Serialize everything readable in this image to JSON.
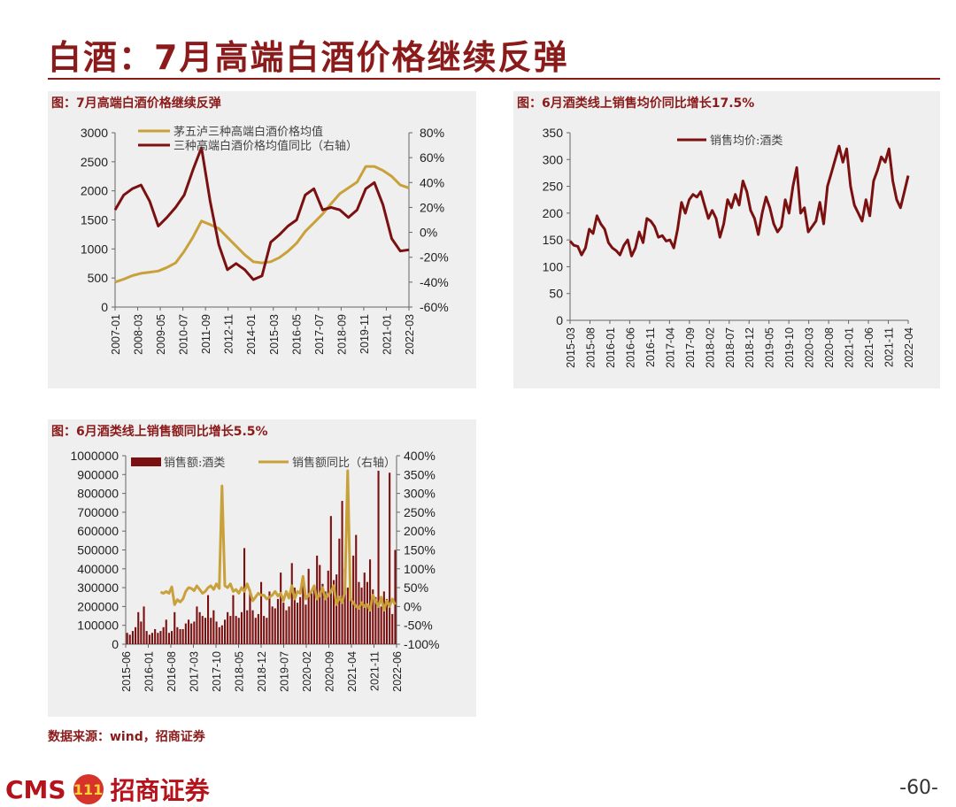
{
  "page": {
    "title": "白酒：7月高端白酒价格继续反弹",
    "source": "数据来源：wind，招商证券",
    "logo_latin": "CMS",
    "logo_mark": "111",
    "logo_cn": "招商证券",
    "page_number": "-60-"
  },
  "colors": {
    "dark_red": "#7b1010",
    "gold": "#c9a13b",
    "title_red": "#8b1a1a"
  },
  "chart_data": [
    {
      "type": "line",
      "title": "图：7月高端白酒价格继续反弹",
      "x": [
        "2007-01",
        "2007-07",
        "2008-01",
        "2008-07",
        "2009-01",
        "2009-07",
        "2010-01",
        "2010-07",
        "2011-01",
        "2011-07",
        "2011-09",
        "2012-01",
        "2012-07",
        "2013-01",
        "2013-07",
        "2014-01",
        "2014-07",
        "2015-01",
        "2015-07",
        "2016-01",
        "2016-07",
        "2017-01",
        "2017-07",
        "2018-01",
        "2018-07",
        "2019-01",
        "2019-07",
        "2020-01",
        "2020-07",
        "2021-01",
        "2021-04",
        "2021-07",
        "2022-01",
        "2022-04",
        "2022-07"
      ],
      "x_ticks": [
        "2007-01",
        "2008-03",
        "2009-05",
        "2010-07",
        "2011-09",
        "2012-11",
        "2014-01",
        "2015-03",
        "2016-05",
        "2017-07",
        "2018-09",
        "2019-11",
        "2021-01",
        "2022-03"
      ],
      "y_left": {
        "ticks": [
          "0",
          "500",
          "1000",
          "1500",
          "2000",
          "2500",
          "3000"
        ],
        "min": 0,
        "max": 3000
      },
      "y_right": {
        "ticks": [
          "-60%",
          "-40%",
          "-20%",
          "0%",
          "20%",
          "40%",
          "60%",
          "80%"
        ],
        "min": -60,
        "max": 80
      },
      "series": [
        {
          "name": "茅五泸三种高端白酒价格均值",
          "axis": "left",
          "color": "#c9a13b",
          "values": [
            430,
            480,
            540,
            580,
            600,
            620,
            680,
            760,
            960,
            1200,
            1480,
            1420,
            1350,
            1200,
            1050,
            900,
            780,
            760,
            780,
            850,
            960,
            1100,
            1300,
            1450,
            1600,
            1780,
            1950,
            2050,
            2150,
            2420,
            2420,
            2350,
            2250,
            2100,
            2050
          ]
        },
        {
          "name": "三种高端白酒价格均值同比（右轴）",
          "axis": "right",
          "color": "#7b1010",
          "values": [
            18,
            30,
            35,
            38,
            25,
            5,
            12,
            20,
            30,
            50,
            68,
            25,
            -10,
            -30,
            -25,
            -30,
            -38,
            -35,
            -8,
            -2,
            5,
            10,
            30,
            35,
            18,
            20,
            18,
            12,
            18,
            35,
            40,
            22,
            -5,
            -15,
            -14
          ]
        }
      ]
    },
    {
      "type": "line",
      "title": "图：6月酒类线上销售均价同比增长17.5%",
      "x_ticks": [
        "2015-03",
        "2015-08",
        "2016-01",
        "2016-06",
        "2016-11",
        "2017-04",
        "2017-09",
        "2018-02",
        "2018-07",
        "2018-12",
        "2019-05",
        "2019-10",
        "2020-03",
        "2020-08",
        "2021-01",
        "2021-06",
        "2021-11",
        "2022-04"
      ],
      "y": {
        "ticks": [
          "0",
          "50",
          "100",
          "150",
          "200",
          "250",
          "300",
          "350"
        ],
        "min": 0,
        "max": 350
      },
      "series": [
        {
          "name": "销售均价:酒类",
          "color": "#7b1010",
          "values": [
            148,
            140,
            138,
            122,
            135,
            170,
            162,
            195,
            180,
            170,
            145,
            135,
            130,
            122,
            140,
            150,
            120,
            135,
            165,
            145,
            190,
            185,
            175,
            155,
            158,
            148,
            150,
            135,
            170,
            220,
            200,
            225,
            235,
            230,
            240,
            215,
            190,
            205,
            190,
            155,
            180,
            225,
            210,
            235,
            215,
            260,
            240,
            205,
            190,
            160,
            200,
            230,
            210,
            180,
            165,
            175,
            225,
            200,
            250,
            285,
            200,
            210,
            165,
            175,
            185,
            220,
            180,
            250,
            275,
            300,
            325,
            295,
            320,
            250,
            215,
            200,
            185,
            225,
            195,
            260,
            280,
            305,
            295,
            320,
            260,
            225,
            210,
            240,
            270
          ]
        }
      ]
    },
    {
      "type": "bar",
      "title": "图：6月酒类线上销售额同比增长5.5%",
      "x_ticks": [
        "2015-06",
        "2016-01",
        "2016-08",
        "2017-03",
        "2017-10",
        "2018-05",
        "2018-12",
        "2019-07",
        "2020-02",
        "2020-09",
        "2021-04",
        "2021-11",
        "2022-06"
      ],
      "y_left": {
        "ticks": [
          "0",
          "100000",
          "200000",
          "300000",
          "400000",
          "500000",
          "600000",
          "700000",
          "800000",
          "900000",
          "1000000"
        ],
        "min": 0,
        "max": 1000000
      },
      "y_right": {
        "ticks": [
          "-100%",
          "-50%",
          "0%",
          "50%",
          "100%",
          "150%",
          "200%",
          "250%",
          "300%",
          "350%",
          "400%"
        ],
        "min": -100,
        "max": 400
      },
      "series": [
        {
          "name": "销售额:酒类",
          "axis": "left",
          "color": "#7b1010",
          "values": [
            60000,
            50000,
            70000,
            90000,
            170000,
            120000,
            200000,
            70000,
            50000,
            60000,
            80000,
            60000,
            70000,
            90000,
            130000,
            60000,
            70000,
            170000,
            90000,
            80000,
            80000,
            110000,
            130000,
            110000,
            120000,
            200000,
            170000,
            150000,
            140000,
            260000,
            140000,
            180000,
            120000,
            90000,
            100000,
            130000,
            170000,
            150000,
            260000,
            150000,
            140000,
            170000,
            510000,
            180000,
            290000,
            180000,
            140000,
            160000,
            330000,
            150000,
            140000,
            280000,
            200000,
            190000,
            240000,
            380000,
            220000,
            180000,
            200000,
            430000,
            300000,
            220000,
            250000,
            330000,
            210000,
            400000,
            270000,
            290000,
            470000,
            420000,
            320000,
            280000,
            390000,
            680000,
            340000,
            370000,
            560000,
            760000,
            400000,
            300000,
            330000,
            470000,
            580000,
            330000,
            300000,
            380000,
            330000,
            450000,
            290000,
            250000,
            920000,
            200000,
            280000,
            240000,
            910000,
            160000,
            500000
          ]
        },
        {
          "name": "销售额同比（右轴）",
          "axis": "right",
          "color": "#c9a13b",
          "values": [
            null,
            null,
            null,
            null,
            null,
            null,
            null,
            null,
            null,
            null,
            null,
            null,
            38,
            35,
            40,
            35,
            52,
            5,
            18,
            12,
            20,
            40,
            50,
            48,
            42,
            55,
            45,
            35,
            40,
            50,
            55,
            45,
            60,
            48,
            320,
            55,
            50,
            60,
            40,
            45,
            35,
            50,
            40,
            60,
            40,
            15,
            25,
            35,
            30,
            30,
            20,
            25,
            30,
            40,
            28,
            35,
            15,
            40,
            22,
            55,
            20,
            40,
            35,
            80,
            20,
            30,
            40,
            55,
            20,
            30,
            50,
            20,
            30,
            40,
            55,
            5,
            25,
            10,
            40,
            360,
            20,
            10,
            0,
            -5,
            10,
            0,
            5,
            -10,
            30,
            15,
            0,
            25,
            -10,
            15,
            0,
            20,
            5
          ]
        }
      ]
    }
  ]
}
